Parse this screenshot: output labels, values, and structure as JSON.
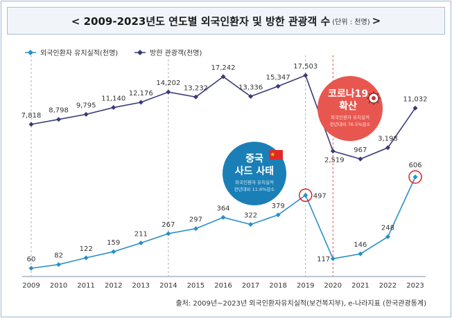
{
  "header": {
    "title": "< 2009-2023년도 연도별 외국인환자 및 방한 관광객 수",
    "unit": "(단위 : 천명)",
    "close": ">"
  },
  "colors": {
    "patients": "#2b8fc6",
    "visitors": "#3a3a78",
    "china_bubble": "#1a7fb6",
    "corona_bubble": "#e8574f",
    "highlight": "#e02020"
  },
  "chart_data": {
    "type": "line",
    "categories": [
      "2009",
      "2010",
      "2011",
      "2012",
      "2013",
      "2014",
      "2015",
      "2016",
      "2017",
      "2018",
      "2019",
      "2020",
      "2021",
      "2022",
      "2023"
    ],
    "series": [
      {
        "name": "외국인환자 유치실적(천명)",
        "values": [
          60,
          82,
          122,
          159,
          211,
          267,
          297,
          364,
          322,
          379,
          497,
          117,
          146,
          248,
          606
        ]
      },
      {
        "name": "방한 관광객(천명)",
        "values": [
          7818,
          8798,
          9795,
          11140,
          12176,
          14202,
          13232,
          17242,
          13336,
          15347,
          17503,
          2519,
          967,
          3198,
          11032
        ]
      }
    ],
    "value_labels": {
      "patients": [
        "60",
        "82",
        "122",
        "159",
        "211",
        "267",
        "297",
        "364",
        "322",
        "379",
        "497",
        "117",
        "146",
        "248",
        "606"
      ],
      "visitors": [
        "7,818",
        "8,798",
        "9,795",
        "11,140",
        "12,176",
        "14,202",
        "13,232",
        "17,242",
        "13,336",
        "15,347",
        "17,503",
        "2,519",
        "967",
        "3,198",
        "11,032"
      ]
    },
    "legend": [
      "외국인환자 유치실적(천명)",
      "방한 관광객(천명)"
    ],
    "highlighted_points": [
      {
        "series": "외국인환자 유치실적(천명)",
        "x": "2019"
      },
      {
        "series": "외국인환자 유치실적(천명)",
        "x": "2023"
      }
    ],
    "reference_lines": [
      "2009",
      "2014",
      "2019",
      "2020"
    ],
    "annotations": [
      {
        "title_line1": "중국",
        "title_line2": "사드 사태",
        "body_line1": "외국인환자 유치실적",
        "body_line2": "전년대비 11.6%감소"
      },
      {
        "title_line1": "코로나19",
        "title_line2": "확산",
        "body_line1": "외국인환자 유치실적",
        "body_line2": "전년대비 76.5%감소"
      }
    ]
  },
  "source": "출처: 2009년~2023년 외국인환자유치실적(보건복지부), e-나라지표 (한국관광통계)"
}
